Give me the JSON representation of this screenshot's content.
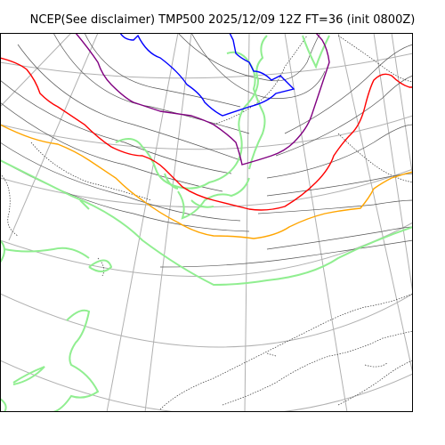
{
  "title": "NCEP(See disclaimer) TMP500 2025/12/09 12Z FT=36 (init 0800Z)",
  "colors": {
    "background": "#ffffff",
    "frame": "#000000",
    "graticule": "#b0b0b0",
    "coastline": "#333333",
    "land_outline": "#90ee90",
    "isotherm_minor": "#555555",
    "isotherm_blue": "#0000ff",
    "isotherm_purple": "#800080",
    "isotherm_red": "#ff0000",
    "isotherm_orange": "#ffa500"
  }
}
